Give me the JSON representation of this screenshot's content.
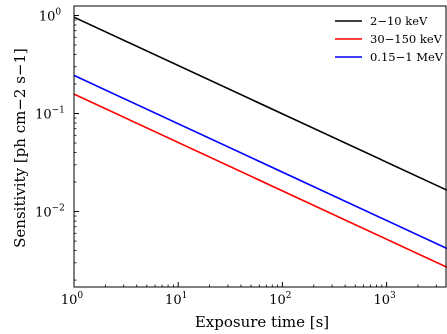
{
  "chart_data": {
    "type": "line",
    "title": "",
    "xlabel": "Exposure time [s]",
    "ylabel": "Sensitivity [ph cm−2 s−1]",
    "xscale": "log",
    "yscale": "log",
    "xlim": [
      1,
      3800
    ],
    "ylim": [
      0.0017,
      1.25
    ],
    "grid": false,
    "legend_position": "top-right",
    "x_ticks": [
      {
        "value": 1,
        "base": "10",
        "exp": "0"
      },
      {
        "value": 10,
        "base": "10",
        "exp": "1"
      },
      {
        "value": 100,
        "base": "10",
        "exp": "2"
      },
      {
        "value": 1000,
        "base": "10",
        "exp": "3"
      }
    ],
    "y_ticks": [
      {
        "value": 1,
        "base": "10",
        "exp": "0"
      },
      {
        "value": 0.1,
        "base": "10",
        "exp": "−1"
      },
      {
        "value": 0.01,
        "base": "10",
        "exp": "−2"
      }
    ],
    "series": [
      {
        "name": "2−10 keV",
        "color": "#000000",
        "x": [
          1,
          3800
        ],
        "y": [
          0.96,
          0.0165
        ]
      },
      {
        "name": "30−150 keV",
        "color": "#ff0000",
        "x": [
          1,
          3800
        ],
        "y": [
          0.158,
          0.0027
        ]
      },
      {
        "name": "0.15−1 MeV",
        "color": "#0000ff",
        "x": [
          1,
          3800
        ],
        "y": [
          0.245,
          0.0042
        ]
      }
    ]
  }
}
